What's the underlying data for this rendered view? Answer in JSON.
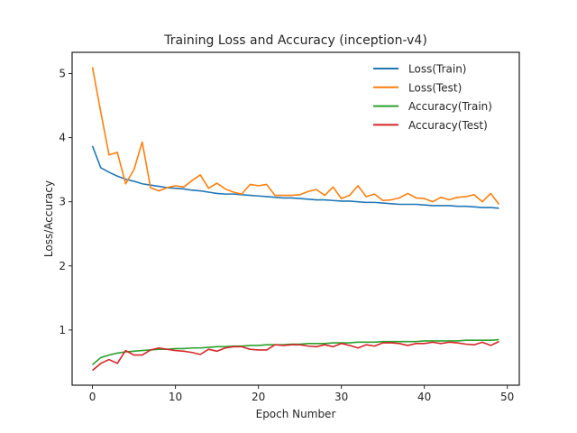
{
  "chart_data": {
    "type": "line",
    "title": "Training Loss and Accuracy (inception-v4)",
    "xlabel": "Epoch Number",
    "ylabel": "Loss/Accuracy",
    "xlim": [
      -2.45,
      51.45
    ],
    "ylim": [
      0.14,
      5.33
    ],
    "xticks": [
      0,
      10,
      20,
      30,
      40,
      50
    ],
    "yticks": [
      1,
      2,
      3,
      4,
      5
    ],
    "grid": false,
    "legend_position": "top-right",
    "x": [
      0,
      1,
      2,
      3,
      4,
      5,
      6,
      7,
      8,
      9,
      10,
      11,
      12,
      13,
      14,
      15,
      16,
      17,
      18,
      19,
      20,
      21,
      22,
      23,
      24,
      25,
      26,
      27,
      28,
      29,
      30,
      31,
      32,
      33,
      34,
      35,
      36,
      37,
      38,
      39,
      40,
      41,
      42,
      43,
      44,
      45,
      46,
      47,
      48,
      49
    ],
    "series": [
      {
        "name": "Loss(Train)",
        "color": "#1f77b4",
        "values": [
          3.87,
          3.53,
          3.46,
          3.4,
          3.35,
          3.32,
          3.28,
          3.26,
          3.24,
          3.22,
          3.21,
          3.2,
          3.18,
          3.17,
          3.15,
          3.13,
          3.12,
          3.12,
          3.11,
          3.1,
          3.09,
          3.08,
          3.07,
          3.06,
          3.06,
          3.05,
          3.04,
          3.03,
          3.03,
          3.02,
          3.01,
          3.01,
          3.0,
          2.99,
          2.99,
          2.98,
          2.97,
          2.96,
          2.96,
          2.96,
          2.95,
          2.94,
          2.94,
          2.94,
          2.93,
          2.93,
          2.92,
          2.91,
          2.91,
          2.9
        ]
      },
      {
        "name": "Loss(Test)",
        "color": "#ff7f0e",
        "values": [
          5.1,
          4.4,
          3.73,
          3.77,
          3.28,
          3.5,
          3.93,
          3.22,
          3.17,
          3.22,
          3.25,
          3.23,
          3.33,
          3.42,
          3.21,
          3.29,
          3.2,
          3.15,
          3.12,
          3.27,
          3.25,
          3.27,
          3.1,
          3.1,
          3.1,
          3.11,
          3.16,
          3.19,
          3.1,
          3.23,
          3.05,
          3.1,
          3.25,
          3.08,
          3.12,
          3.02,
          3.03,
          3.06,
          3.13,
          3.06,
          3.05,
          3.0,
          3.07,
          3.03,
          3.07,
          3.08,
          3.11,
          3.0,
          3.13,
          2.96
        ]
      },
      {
        "name": "Accuracy(Train)",
        "color": "#2ca02c",
        "values": [
          0.46,
          0.57,
          0.61,
          0.64,
          0.66,
          0.67,
          0.68,
          0.69,
          0.7,
          0.7,
          0.71,
          0.71,
          0.72,
          0.72,
          0.73,
          0.74,
          0.74,
          0.75,
          0.75,
          0.76,
          0.76,
          0.77,
          0.77,
          0.77,
          0.78,
          0.78,
          0.79,
          0.79,
          0.79,
          0.8,
          0.8,
          0.8,
          0.81,
          0.81,
          0.81,
          0.82,
          0.82,
          0.82,
          0.82,
          0.82,
          0.83,
          0.83,
          0.83,
          0.83,
          0.83,
          0.84,
          0.84,
          0.84,
          0.84,
          0.85
        ]
      },
      {
        "name": "Accuracy(Test)",
        "color": "#d62728",
        "values": [
          0.37,
          0.48,
          0.54,
          0.48,
          0.68,
          0.61,
          0.61,
          0.69,
          0.72,
          0.7,
          0.68,
          0.67,
          0.65,
          0.62,
          0.7,
          0.67,
          0.72,
          0.74,
          0.74,
          0.7,
          0.69,
          0.69,
          0.77,
          0.76,
          0.77,
          0.77,
          0.75,
          0.74,
          0.77,
          0.74,
          0.79,
          0.76,
          0.72,
          0.77,
          0.75,
          0.8,
          0.8,
          0.79,
          0.76,
          0.79,
          0.79,
          0.81,
          0.79,
          0.81,
          0.8,
          0.78,
          0.77,
          0.81,
          0.76,
          0.82
        ]
      }
    ]
  }
}
